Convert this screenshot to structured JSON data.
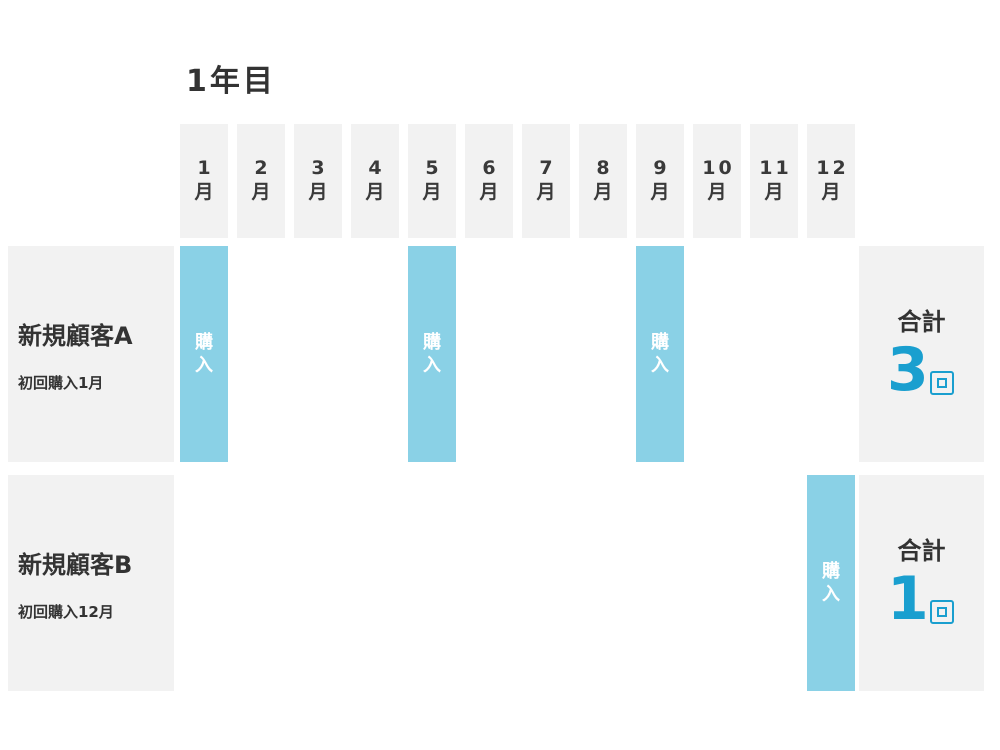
{
  "year_title": "1年目",
  "month_unit": "月",
  "months": [
    "1",
    "2",
    "3",
    "4",
    "5",
    "6",
    "7",
    "8",
    "9",
    "10",
    "11",
    "12"
  ],
  "purchase_label": [
    "購",
    "入"
  ],
  "total_label": "合計",
  "total_unit": "回",
  "customers": [
    {
      "name": "新規顧客A",
      "first_purchase": "初回購入1月",
      "purchases": [
        1,
        5,
        9
      ],
      "total": "3"
    },
    {
      "name": "新規顧客B",
      "first_purchase": "初回購入12月",
      "purchases": [
        12
      ],
      "total": "1"
    }
  ],
  "colors": {
    "purchase": "#8ad1e6",
    "accent": "#1a9fcf",
    "cell_bg": "#f2f2f2"
  }
}
